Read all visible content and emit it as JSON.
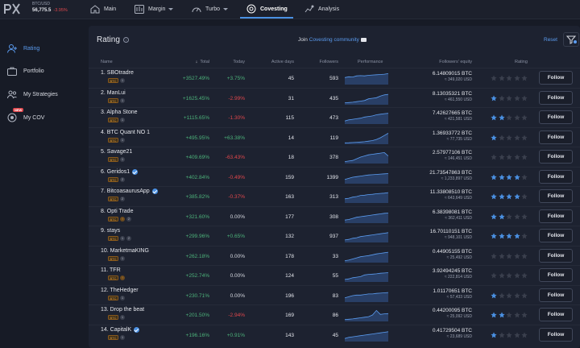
{
  "colors": {
    "accent": "#4a90e2",
    "positive": "#4cb27a",
    "negative": "#e0474c",
    "star_filled": "#4a90e2",
    "star_empty": "#3a3f4d"
  },
  "ticker": {
    "pair": "BTC/USD",
    "price": "56,775.5",
    "change": "-3.95%"
  },
  "nav": {
    "main": "Main",
    "margin": "Margin",
    "turbo": "Turbo",
    "covesting": "Covesting",
    "analysis": "Analysis"
  },
  "sidebar": {
    "rating": "Rating",
    "portfolio": "Portfolio",
    "strategies": "My Strategies",
    "cov": "My COV",
    "new_badge": "NEW"
  },
  "panel": {
    "title": "Rating",
    "info_icon": "i",
    "join_prefix": "Join",
    "join_link": "Covesting community",
    "reset": "Reset"
  },
  "columns": {
    "name": "Name",
    "total": "Total",
    "today": "Today",
    "days": "Active days",
    "followers": "Followers",
    "performance": "Performance",
    "equity": "Followers' equity",
    "rating": "Rating"
  },
  "follow_label": "Follow",
  "rows": [
    {
      "name": "1. SBOtradre",
      "verified": false,
      "tags": [
        "1"
      ],
      "total": "+3527.49%",
      "today": "+3.75%",
      "today_sign": "pos",
      "days": "45",
      "followers": "593",
      "equity_btc": "6.14809015 BTC",
      "equity_usd": "≈ 349,020 USD",
      "stars": 0,
      "perf": [
        0.55,
        0.62,
        0.6,
        0.7,
        0.72,
        0.7,
        0.75,
        0.78,
        0.8,
        0.82,
        0.85,
        0.9
      ]
    },
    {
      "name": "2. ManLui",
      "verified": false,
      "tags": [
        "1"
      ],
      "total": "+1625.45%",
      "today": "-2.99%",
      "today_sign": "neg",
      "days": "31",
      "followers": "435",
      "equity_btc": "8.13035321 BTC",
      "equity_usd": "≈ 461,550 USD",
      "stars": 1,
      "perf": [
        0.1,
        0.12,
        0.15,
        0.2,
        0.25,
        0.3,
        0.45,
        0.5,
        0.55,
        0.7,
        0.8,
        0.85
      ]
    },
    {
      "name": "3. Alpha Stone",
      "verified": false,
      "tags": [
        "1"
      ],
      "total": "+1115.65%",
      "today": "-1.30%",
      "today_sign": "neg",
      "days": "115",
      "followers": "473",
      "equity_btc": "7.42627665 BTC",
      "equity_usd": "≈ 421,581 USD",
      "stars": 2,
      "perf": [
        0.2,
        0.3,
        0.35,
        0.4,
        0.45,
        0.55,
        0.6,
        0.65,
        0.75,
        0.8,
        0.85,
        0.88
      ]
    },
    {
      "name": "4. BTC Quant NO 1",
      "verified": false,
      "tags": [
        "1"
      ],
      "total": "+495.95%",
      "today": "+63.38%",
      "today_sign": "pos",
      "days": "14",
      "followers": "119",
      "equity_btc": "1.36933772 BTC",
      "equity_usd": "≈ 77,735 USD",
      "stars": 1,
      "perf": [
        0.05,
        0.06,
        0.08,
        0.1,
        0.12,
        0.15,
        0.2,
        0.25,
        0.35,
        0.5,
        0.7,
        0.9
      ]
    },
    {
      "name": "5. Savage21",
      "verified": false,
      "tags": [
        "1"
      ],
      "total": "+409.69%",
      "today": "-63.43%",
      "today_sign": "neg",
      "days": "18",
      "followers": "378",
      "equity_btc": "2.57977106 BTC",
      "equity_usd": "≈ 146,451 USD",
      "stars": 0,
      "perf": [
        0.1,
        0.15,
        0.2,
        0.35,
        0.5,
        0.6,
        0.7,
        0.75,
        0.8,
        0.85,
        0.9,
        0.6
      ]
    },
    {
      "name": "6. Geridos1",
      "verified": true,
      "tags": [
        "2"
      ],
      "total": "+402.84%",
      "today": "-0.49%",
      "today_sign": "neg",
      "days": "159",
      "followers": "1399",
      "equity_btc": "21.73547863 BTC",
      "equity_usd": "≈ 1,233,897 USD",
      "stars": 4,
      "perf": [
        0.3,
        0.4,
        0.5,
        0.55,
        0.6,
        0.65,
        0.7,
        0.72,
        0.75,
        0.78,
        0.8,
        0.82
      ]
    },
    {
      "name": "7. BitcoasaurusApp",
      "verified": true,
      "tags": [
        "2"
      ],
      "total": "+385.82%",
      "today": "-0.37%",
      "today_sign": "neg",
      "days": "163",
      "followers": "313",
      "equity_btc": "11.33808510 BTC",
      "equity_usd": "≈ 643,649 USD",
      "stars": 4,
      "perf": [
        0.3,
        0.35,
        0.45,
        0.5,
        0.6,
        0.62,
        0.68,
        0.7,
        0.75,
        0.78,
        0.8,
        0.85
      ]
    },
    {
      "name": "8. Opti Trade",
      "verified": false,
      "tags": [
        "!",
        "2"
      ],
      "total": "+321.60%",
      "today": "0.00%",
      "today_sign": "neu",
      "days": "177",
      "followers": "308",
      "equity_btc": "6.38398081 BTC",
      "equity_usd": "≈ 362,411 USD",
      "stars": 2,
      "perf": [
        0.2,
        0.25,
        0.35,
        0.45,
        0.5,
        0.55,
        0.6,
        0.65,
        0.7,
        0.75,
        0.8,
        0.82
      ]
    },
    {
      "name": "9. stays",
      "verified": false,
      "tags": [
        "1",
        "2"
      ],
      "total": "+299.96%",
      "today": "+0.65%",
      "today_sign": "pos",
      "days": "132",
      "followers": "937",
      "equity_btc": "16.70110151 BTC",
      "equity_usd": "≈ 948,101 USD",
      "stars": 4,
      "perf": [
        0.15,
        0.2,
        0.3,
        0.35,
        0.45,
        0.5,
        0.55,
        0.6,
        0.65,
        0.7,
        0.75,
        0.8
      ]
    },
    {
      "name": "10. MarketmaKING",
      "verified": false,
      "tags": [
        "1"
      ],
      "total": "+262.18%",
      "today": "0.00%",
      "today_sign": "neu",
      "days": "178",
      "followers": "33",
      "equity_btc": "0.44905155 BTC",
      "equity_usd": "≈ 25,492 USD",
      "stars": 0,
      "perf": [
        0.1,
        0.15,
        0.25,
        0.35,
        0.45,
        0.5,
        0.55,
        0.62,
        0.7,
        0.75,
        0.8,
        0.85
      ]
    },
    {
      "name": "11. TFR",
      "verified": false,
      "tags": [
        "!"
      ],
      "total": "+252.74%",
      "today": "0.00%",
      "today_sign": "neu",
      "days": "124",
      "followers": "55",
      "equity_btc": "3.92494245 BTC",
      "equity_usd": "≈ 222,814 USD",
      "stars": 0,
      "perf": [
        0.15,
        0.2,
        0.3,
        0.35,
        0.4,
        0.55,
        0.6,
        0.62,
        0.65,
        0.7,
        0.72,
        0.75
      ]
    },
    {
      "name": "12. TheHedger",
      "verified": false,
      "tags": [
        "1"
      ],
      "total": "+230.71%",
      "today": "0.00%",
      "today_sign": "neu",
      "days": "196",
      "followers": "83",
      "equity_btc": "1.01170651 BTC",
      "equity_usd": "≈ 57,433 USD",
      "stars": 1,
      "perf": [
        0.3,
        0.4,
        0.5,
        0.55,
        0.55,
        0.6,
        0.65,
        0.65,
        0.7,
        0.72,
        0.75,
        0.78
      ]
    },
    {
      "name": "13. Drop the beat",
      "verified": false,
      "tags": [
        "1"
      ],
      "total": "+201.50%",
      "today": "-2.94%",
      "today_sign": "neg",
      "days": "169",
      "followers": "86",
      "equity_btc": "0.44200095 BTC",
      "equity_usd": "≈ 25,092 USD",
      "stars": 2,
      "perf": [
        0.1,
        0.12,
        0.15,
        0.2,
        0.25,
        0.3,
        0.35,
        0.5,
        0.9,
        0.55,
        0.6,
        0.62
      ]
    },
    {
      "name": "14. CapitalK",
      "verified": true,
      "tags": [
        "1"
      ],
      "total": "+196.16%",
      "today": "+0.91%",
      "today_sign": "pos",
      "days": "143",
      "followers": "45",
      "equity_btc": "0.41729504 BTC",
      "equity_usd": "≈ 23,689 USD",
      "stars": 1,
      "perf": [
        0.2,
        0.3,
        0.35,
        0.4,
        0.45,
        0.5,
        0.55,
        0.6,
        0.65,
        0.7,
        0.75,
        0.8
      ]
    }
  ]
}
